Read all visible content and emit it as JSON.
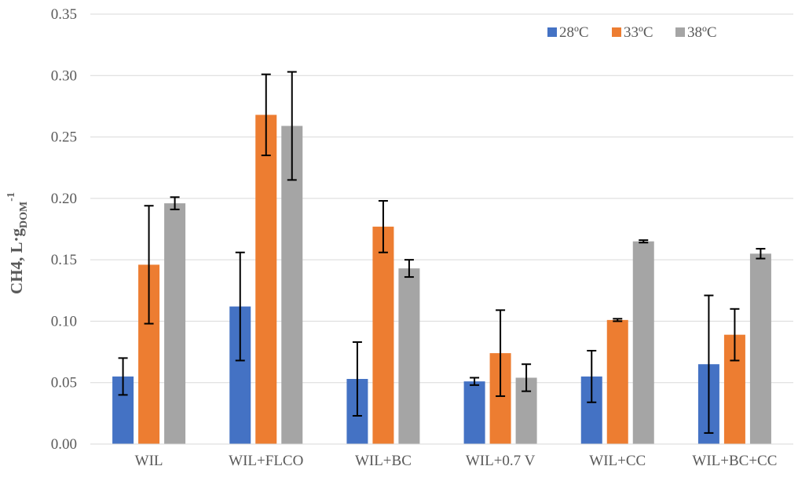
{
  "chart_data": {
    "type": "bar",
    "title": "",
    "xlabel": "",
    "ylabel": {
      "main": "CH4, L·g",
      "subscript": "DOM",
      "superscript": "-1"
    },
    "ylim": [
      0,
      0.35
    ],
    "yticks": [
      "0.00",
      "0.05",
      "0.10",
      "0.15",
      "0.20",
      "0.25",
      "0.30",
      "0.35"
    ],
    "ytick_values": [
      0,
      0.05,
      0.1,
      0.15,
      0.2,
      0.25,
      0.3,
      0.35
    ],
    "grid": true,
    "legend_position": "top-right",
    "categories": [
      "WIL",
      "WIL+FLCO",
      "WIL+BC",
      "WIL+0.7 V",
      "WIL+CC",
      "WIL+BC+CC"
    ],
    "series": [
      {
        "name": "28ºC",
        "color": "#4472C4",
        "values": [
          0.055,
          0.112,
          0.053,
          0.051,
          0.055,
          0.065
        ],
        "errors": [
          0.015,
          0.044,
          0.03,
          0.003,
          0.021,
          0.056
        ]
      },
      {
        "name": "33ºC",
        "color": "#ED7D31",
        "values": [
          0.146,
          0.268,
          0.177,
          0.074,
          0.101,
          0.089
        ],
        "errors": [
          0.048,
          0.033,
          0.021,
          0.035,
          0.001,
          0.021
        ]
      },
      {
        "name": "38ºC",
        "color": "#A5A5A5",
        "values": [
          0.196,
          0.259,
          0.143,
          0.054,
          0.165,
          0.155
        ],
        "errors": [
          0.005,
          0.044,
          0.007,
          0.011,
          0.001,
          0.004
        ]
      }
    ]
  }
}
